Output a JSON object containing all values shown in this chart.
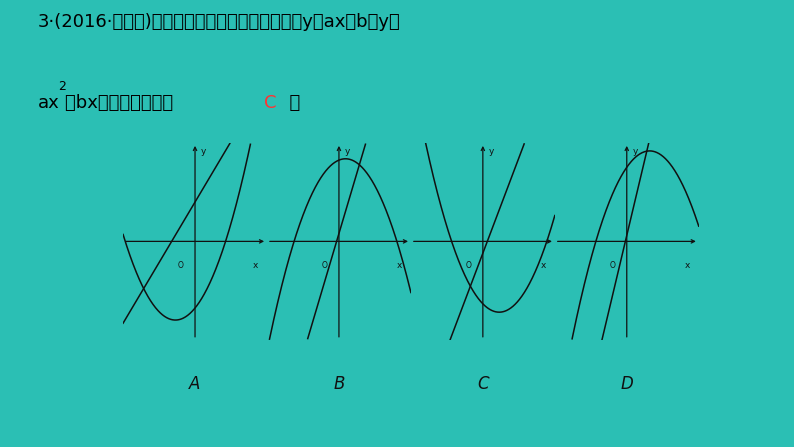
{
  "bg_color": "#2bbfb4",
  "white_box_color": "#ffffff",
  "line1": "3·(2016·张家界)在同一平面直角坐标系中，函数y＝ax＋b与y＝",
  "line2_before": "ax",
  "line2_mid": "2",
  "line2_after": "－bx的图像可能是（  ",
  "line2_c": "C",
  "line2_end": "  ）",
  "answer_color": "#ff3333",
  "text_color": "#000000",
  "labels": [
    "A",
    "B",
    "C",
    "D"
  ],
  "label_color": "#111111",
  "curve_color": "#111111",
  "axis_color": "#111111",
  "fig_width": 7.94,
  "fig_height": 4.47,
  "dpi": 100
}
